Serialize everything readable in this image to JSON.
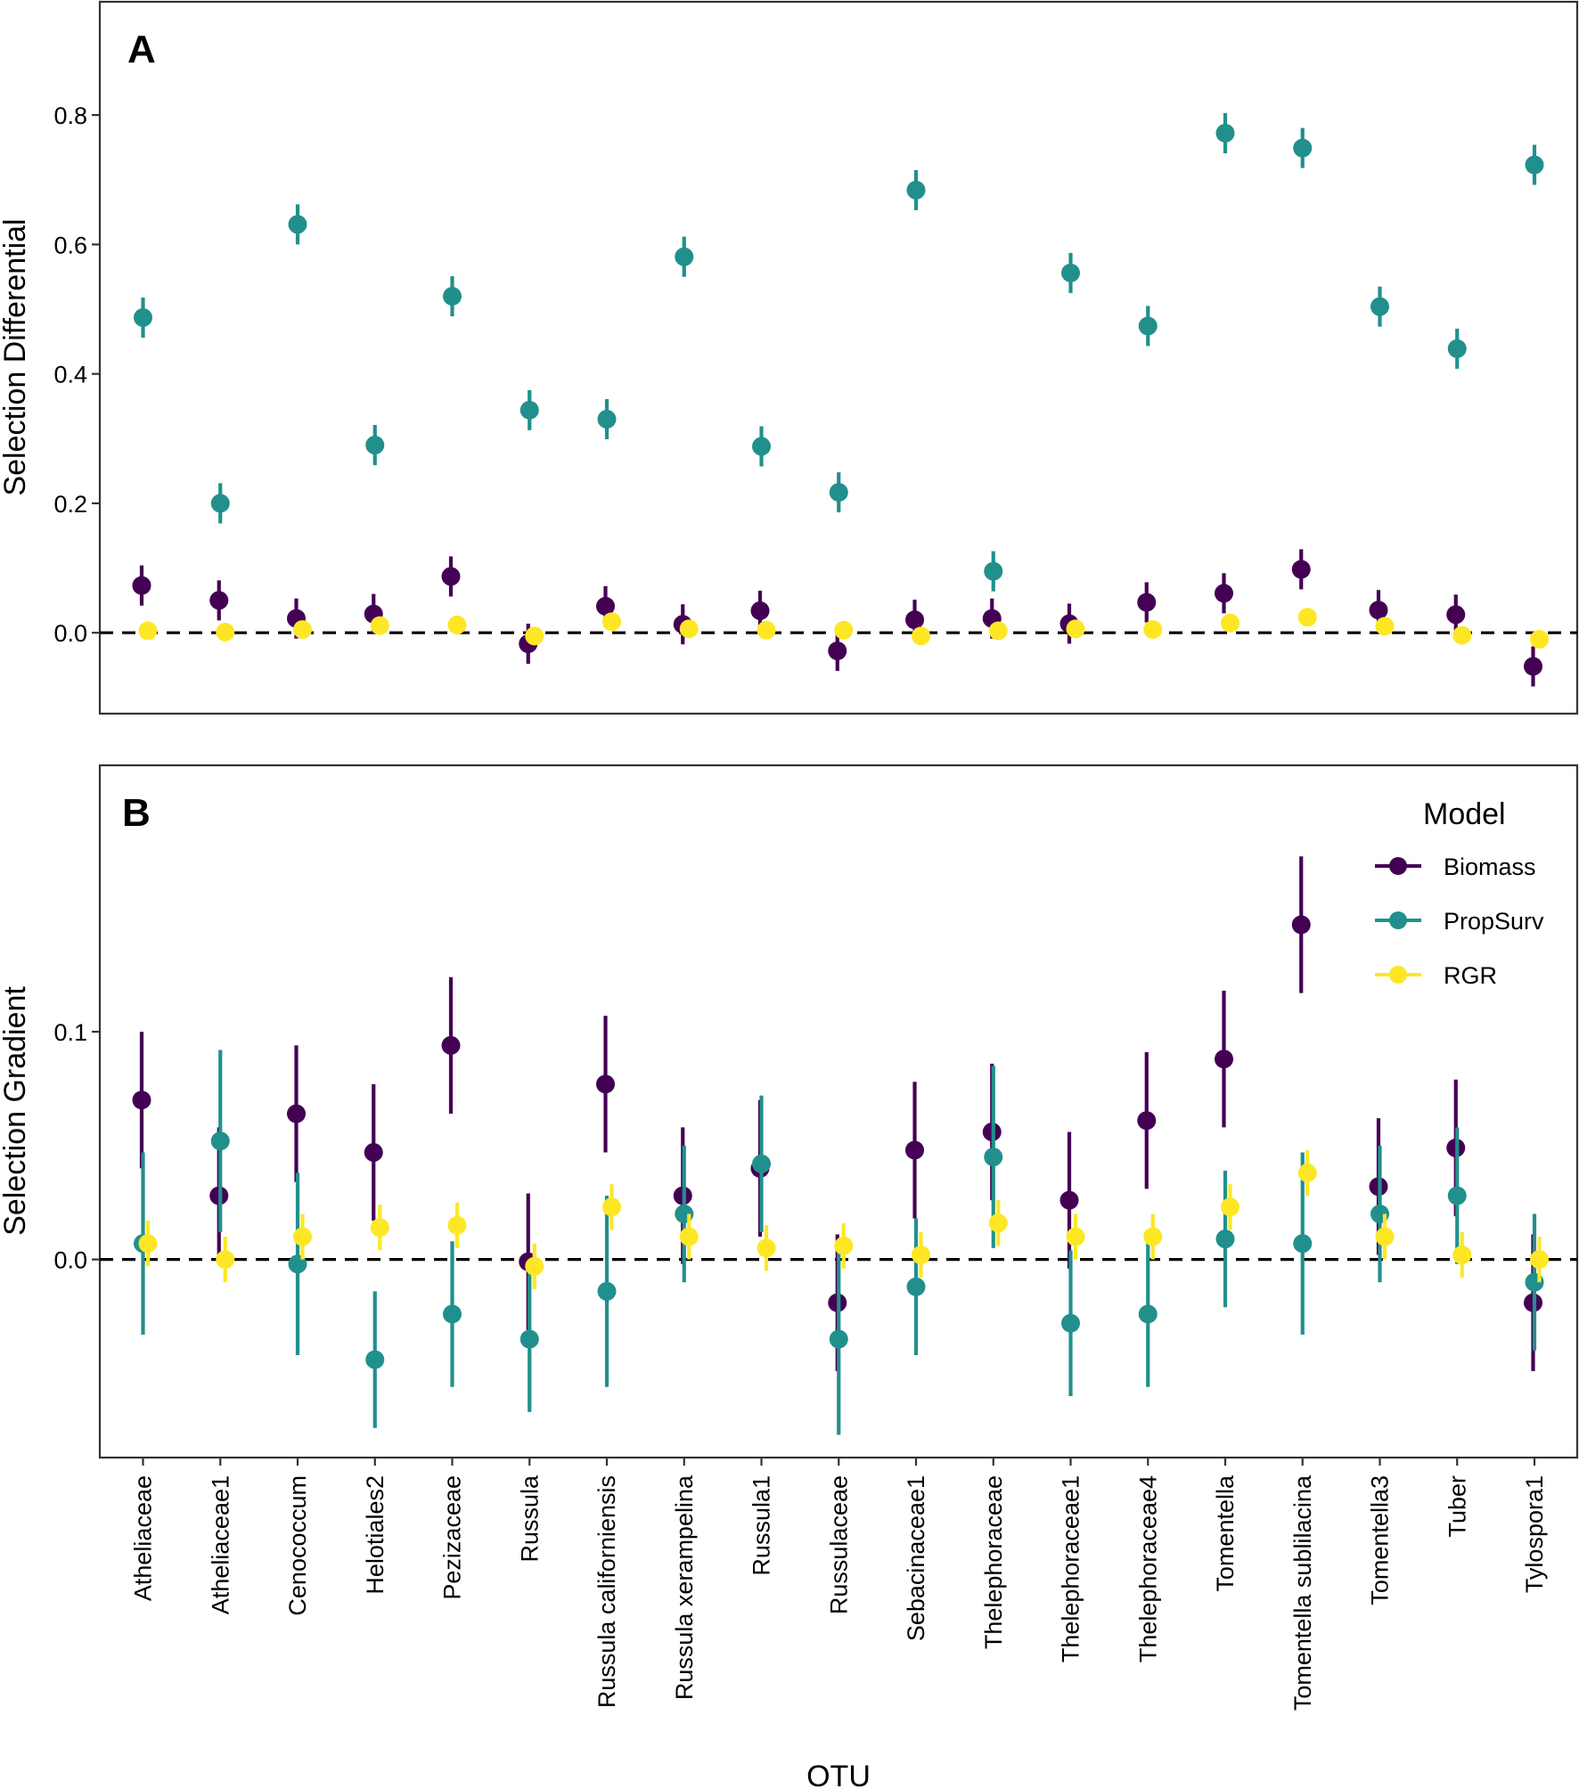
{
  "chart_data": {
    "type": "scatter",
    "subtype": "point-range",
    "xlabel": "OTU",
    "categories": [
      "Atheliaceae",
      "Atheliaceae1",
      "Cenococcum",
      "Helotiales2",
      "Pezizaceae",
      "Russula",
      "Russula californiensis",
      "Russula xerampelina",
      "Russula1",
      "Russulaceae",
      "Sebacinaceae1",
      "Thelephoraceae",
      "Thelephoraceae1",
      "Thelephoraceae4",
      "Tomentella",
      "Tomentella sublilacina",
      "Tomentella3",
      "Tuber",
      "Tylospora1"
    ],
    "legend": {
      "title": "Model",
      "placement": "top-right of panel B",
      "entries": [
        {
          "name": "Biomass",
          "color": "#440154"
        },
        {
          "name": "PropSurv",
          "color": "#21908C"
        },
        {
          "name": "RGR",
          "color": "#FDE725"
        }
      ]
    },
    "reference_line": {
      "y": 0,
      "style": "dashed"
    },
    "panels": [
      {
        "tag": "A",
        "ylabel": "Selection Differential",
        "ylim": [
          -0.125,
          0.975
        ],
        "yticks": [
          0.0,
          0.2,
          0.4,
          0.6,
          0.8
        ],
        "ytick_labels": [
          "0.0",
          "0.2",
          "0.4",
          "0.6",
          "0.8"
        ],
        "series": [
          {
            "name": "Biomass",
            "values": [
              0.073,
              0.05,
              0.022,
              0.029,
              0.087,
              -0.017,
              0.041,
              0.013,
              0.034,
              -0.028,
              0.02,
              0.022,
              0.014,
              0.047,
              0.061,
              0.098,
              0.035,
              0.028,
              -0.052
            ],
            "err": [
              0.031,
              0.031,
              0.031,
              0.031,
              0.031,
              0.031,
              0.031,
              0.031,
              0.031,
              0.031,
              0.031,
              0.031,
              0.031,
              0.031,
              0.031,
              0.031,
              0.031,
              0.031,
              0.031
            ]
          },
          {
            "name": "PropSurv",
            "values": [
              0.487,
              0.2,
              0.631,
              0.29,
              0.52,
              0.344,
              0.33,
              0.581,
              0.288,
              0.217,
              0.684,
              0.095,
              0.556,
              0.474,
              0.772,
              0.749,
              0.504,
              0.439,
              0.723
            ],
            "err": [
              0.031,
              0.031,
              0.031,
              0.031,
              0.031,
              0.031,
              0.031,
              0.031,
              0.031,
              0.031,
              0.031,
              0.031,
              0.031,
              0.031,
              0.031,
              0.031,
              0.031,
              0.031,
              0.031
            ]
          },
          {
            "name": "RGR",
            "values": [
              0.003,
              0.001,
              0.005,
              0.011,
              0.012,
              -0.005,
              0.017,
              0.006,
              0.004,
              0.004,
              -0.005,
              0.003,
              0.006,
              0.005,
              0.015,
              0.024,
              0.01,
              -0.004,
              -0.01
            ],
            "err": [
              0.006,
              0.006,
              0.006,
              0.006,
              0.006,
              0.006,
              0.006,
              0.006,
              0.006,
              0.006,
              0.006,
              0.006,
              0.006,
              0.006,
              0.006,
              0.006,
              0.006,
              0.006,
              0.006
            ]
          }
        ]
      },
      {
        "tag": "B",
        "ylabel": "Selection Gradient",
        "ylim": [
          -0.087,
          0.217
        ],
        "yticks": [
          0.0,
          0.1
        ],
        "ytick_labels": [
          "0.0",
          "0.1"
        ],
        "series": [
          {
            "name": "Biomass",
            "values": [
              0.07,
              0.028,
              0.064,
              0.047,
              0.094,
              -0.001,
              0.077,
              0.028,
              0.04,
              -0.019,
              0.048,
              0.056,
              0.026,
              0.061,
              0.088,
              0.147,
              0.032,
              0.049,
              -0.019
            ],
            "err": [
              0.03,
              0.03,
              0.03,
              0.03,
              0.03,
              0.03,
              0.03,
              0.03,
              0.03,
              0.03,
              0.03,
              0.03,
              0.03,
              0.03,
              0.03,
              0.03,
              0.03,
              0.03,
              0.03
            ]
          },
          {
            "name": "PropSurv",
            "values": [
              0.007,
              0.052,
              -0.002,
              -0.044,
              -0.024,
              -0.035,
              -0.014,
              0.02,
              0.042,
              -0.035,
              -0.012,
              0.045,
              -0.028,
              -0.024,
              0.009,
              0.007,
              0.02,
              0.028,
              -0.01
            ],
            "err": [
              0.04,
              0.04,
              0.04,
              0.03,
              0.032,
              0.032,
              0.042,
              0.03,
              0.03,
              0.042,
              0.03,
              0.04,
              0.032,
              0.032,
              0.03,
              0.04,
              0.03,
              0.03,
              0.03
            ]
          },
          {
            "name": "RGR",
            "values": [
              0.007,
              0.0,
              0.01,
              0.014,
              0.015,
              -0.003,
              0.023,
              0.01,
              0.005,
              0.006,
              0.002,
              0.016,
              0.01,
              0.01,
              0.023,
              0.038,
              0.01,
              0.002,
              0.0
            ],
            "err": [
              0.01,
              0.01,
              0.01,
              0.01,
              0.01,
              0.01,
              0.01,
              0.01,
              0.01,
              0.01,
              0.01,
              0.01,
              0.01,
              0.01,
              0.01,
              0.01,
              0.01,
              0.01,
              0.01
            ]
          }
        ]
      }
    ]
  }
}
